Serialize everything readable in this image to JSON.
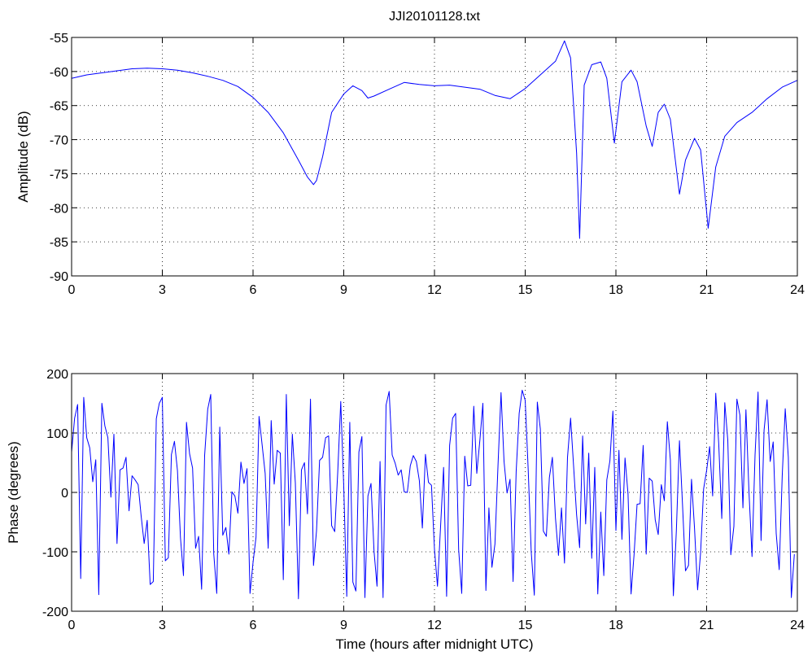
{
  "figure_title": "JJI20101128.txt",
  "chart_data": [
    {
      "type": "line",
      "title": "JJI20101128.txt",
      "xlabel": "",
      "ylabel": "Amplitude (dB)",
      "xlim": [
        0,
        24
      ],
      "ylim": [
        -90,
        -55
      ],
      "xticks": [
        0,
        3,
        6,
        9,
        12,
        15,
        18,
        21,
        24
      ],
      "yticks": [
        -90,
        -85,
        -80,
        -75,
        -70,
        -65,
        -60,
        -55
      ],
      "grid": true,
      "color": "#0000ff",
      "series": [
        {
          "x": [
            0,
            0.5,
            1.0,
            1.5,
            2.0,
            2.5,
            3.0,
            3.5,
            4.0,
            4.5,
            5.0,
            5.5,
            6.0,
            6.5,
            7.0,
            7.5,
            7.8,
            8.0,
            8.1,
            8.3,
            8.6,
            9.0,
            9.3,
            9.6,
            9.8,
            10.0,
            10.5,
            11.0,
            11.5,
            12.0,
            12.5,
            13.0,
            13.5,
            14.0,
            14.5,
            15.0,
            15.5,
            16.0,
            16.3,
            16.5,
            16.7,
            16.8,
            16.95,
            17.2,
            17.5,
            17.7,
            17.95,
            18.2,
            18.5,
            18.7,
            19.0,
            19.2,
            19.4,
            19.6,
            19.8,
            20.1,
            20.3,
            20.6,
            20.8,
            21.05,
            21.3,
            21.6,
            22.0,
            22.5,
            23.0,
            23.5,
            24.0
          ],
          "values": [
            -61.0,
            -60.5,
            -60.2,
            -59.9,
            -59.6,
            -59.5,
            -59.6,
            -59.8,
            -60.2,
            -60.7,
            -61.3,
            -62.2,
            -63.8,
            -66.0,
            -69.0,
            -73.0,
            -75.5,
            -76.6,
            -76.0,
            -72.5,
            -66.0,
            -63.3,
            -62.1,
            -62.8,
            -63.9,
            -63.6,
            -62.6,
            -61.6,
            -61.9,
            -62.1,
            -62.0,
            -62.3,
            -62.6,
            -63.5,
            -64.0,
            -62.5,
            -60.5,
            -58.5,
            -55.5,
            -58.0,
            -72.0,
            -84.5,
            -62.0,
            -59.0,
            -58.6,
            -61.0,
            -70.5,
            -61.5,
            -59.8,
            -61.5,
            -68.0,
            -71.0,
            -66.0,
            -64.8,
            -67.0,
            -78.0,
            -73.0,
            -69.8,
            -71.5,
            -83.0,
            -74.0,
            -69.5,
            -67.5,
            -66.0,
            -64.0,
            -62.3,
            -61.3
          ]
        }
      ]
    },
    {
      "type": "line",
      "title": "",
      "xlabel": "Time (hours after midnight UTC)",
      "ylabel": "Phase (degrees)",
      "xlim": [
        0,
        24
      ],
      "ylim": [
        -200,
        200
      ],
      "xticks": [
        0,
        3,
        6,
        9,
        12,
        15,
        18,
        21,
        24
      ],
      "yticks": [
        -200,
        -100,
        0,
        100,
        200
      ],
      "grid": true,
      "color": "#0000ff",
      "series": [
        {
          "x_start": 0,
          "x_step": 0.1,
          "values": [
            68,
            125,
            148,
            -145,
            160,
            92,
            75,
            18,
            55,
            -172,
            150,
            112,
            92,
            -8,
            98,
            -86,
            38,
            41,
            59,
            -31,
            28,
            21,
            13,
            -40,
            -86,
            -47,
            -155,
            -150,
            124,
            150,
            160,
            -115,
            -110,
            64,
            86,
            37,
            -76,
            -140,
            118,
            65,
            41,
            -94,
            -74,
            -163,
            62,
            140,
            165,
            -103,
            -170,
            110,
            -72,
            -59,
            -104,
            1,
            -6,
            -35,
            51,
            15,
            40,
            -170,
            -118,
            -75,
            128,
            81,
            32,
            -94,
            121,
            14,
            71,
            66,
            -147,
            165,
            -56,
            98,
            16,
            -179,
            38,
            50,
            -36,
            157,
            -123,
            -65,
            54,
            59,
            92,
            95,
            -56,
            -66,
            34,
            153,
            9,
            -175,
            118,
            -151,
            -166,
            68,
            94,
            -177,
            -6,
            15,
            -99,
            -158,
            52,
            -177,
            147,
            170,
            63,
            49,
            29,
            38,
            1,
            0,
            45,
            62,
            52,
            20,
            -60,
            64,
            17,
            12,
            -96,
            -158,
            -60,
            42,
            -175,
            79,
            125,
            133,
            -96,
            -170,
            61,
            11,
            12,
            145,
            32,
            88,
            150,
            -165,
            -26,
            -126,
            -87,
            46,
            168,
            52,
            -1,
            22,
            -150,
            35,
            133,
            172,
            155,
            38,
            -100,
            -173,
            152,
            107,
            -65,
            -74,
            25,
            59,
            -43,
            -106,
            -26,
            -119,
            59,
            125,
            44,
            -38,
            -93,
            95,
            -53,
            66,
            -111,
            42,
            -171,
            -33,
            -140,
            21,
            53,
            137,
            -64,
            71,
            -79,
            58,
            -3,
            -171,
            -105,
            -20,
            -19,
            79,
            -104,
            24,
            19,
            -46,
            -71,
            13,
            -14,
            119,
            55,
            -174,
            -64,
            87,
            -19,
            -132,
            -123,
            22,
            -60,
            -164,
            -101,
            6,
            37,
            77,
            -6,
            167,
            81,
            -44,
            151,
            88,
            -105,
            -57,
            157,
            130,
            -26,
            139,
            2,
            -108,
            63,
            169,
            -81,
            105,
            156,
            52,
            85,
            -69,
            -130,
            28,
            141,
            59,
            -177,
            -104
          ]
        }
      ]
    }
  ]
}
